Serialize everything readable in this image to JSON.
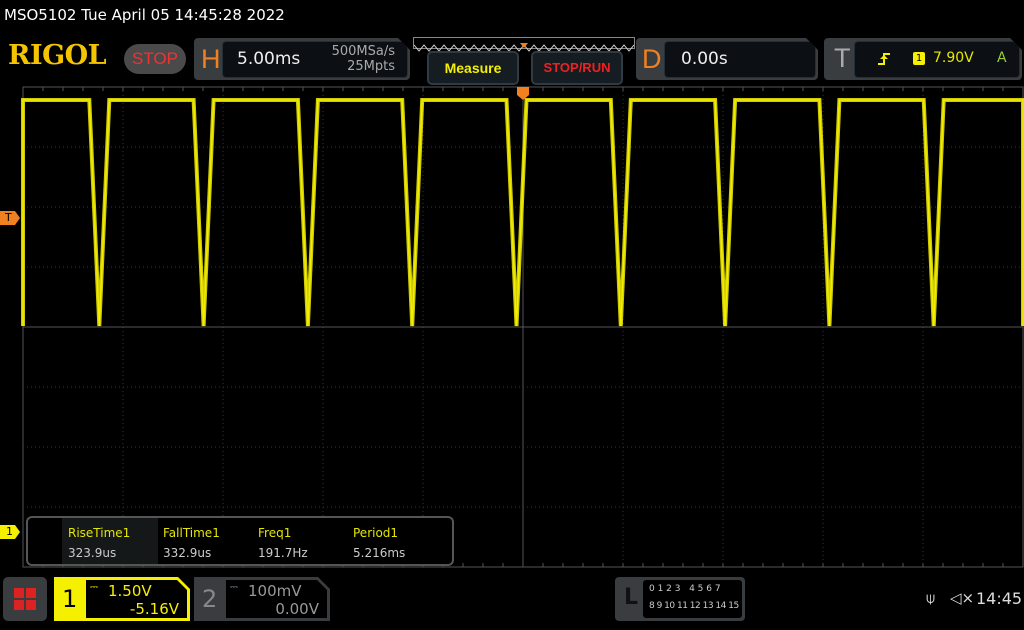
{
  "title_bar": "MSO5102  Tue April 05 14:45:28 2022",
  "logo": "RIGOL",
  "run_state": "STOP",
  "horizontal": {
    "letter": "H",
    "timebase": "5.00ms",
    "sample_rate": "500MSa/s",
    "memory_depth": "25Mpts"
  },
  "buttons": {
    "measure": "Measure",
    "stop_run": "STOP/RUN"
  },
  "delay": {
    "letter": "D",
    "value": "0.00s"
  },
  "trigger": {
    "letter": "T",
    "slope_icon": "rising-edge-icon",
    "source": "1",
    "level": "7.90V",
    "mode": "A",
    "marker": "T"
  },
  "channel_marker": "1",
  "measurements": [
    {
      "label": "RiseTime1",
      "value": "323.9us"
    },
    {
      "label": "FallTime1",
      "value": "332.9us"
    },
    {
      "label": "Freq1",
      "value": "191.7Hz"
    },
    {
      "label": "Period1",
      "value": "5.216ms"
    }
  ],
  "channels": [
    {
      "number": "1",
      "coupling_icon": "dc-coupling-icon",
      "scale": "1.50V",
      "offset": "-5.16V",
      "color": "#f5f000",
      "active": true
    },
    {
      "number": "2",
      "coupling_icon": "dc-coupling-icon",
      "scale": "100mV",
      "offset": "0.00V",
      "color": "#888888",
      "active": false
    }
  ],
  "logic": {
    "letter": "L",
    "row1": "0 1 2 3   4 5 6 7",
    "row2": "8 9 10 11 12 13 14 15"
  },
  "status": {
    "usb_icon": "usb-icon",
    "speaker_icon": "speaker-muted-icon",
    "time": "14:45"
  },
  "colors": {
    "waveform": "#f5f000",
    "trigger": "#f08020",
    "grid": "#555555"
  }
}
